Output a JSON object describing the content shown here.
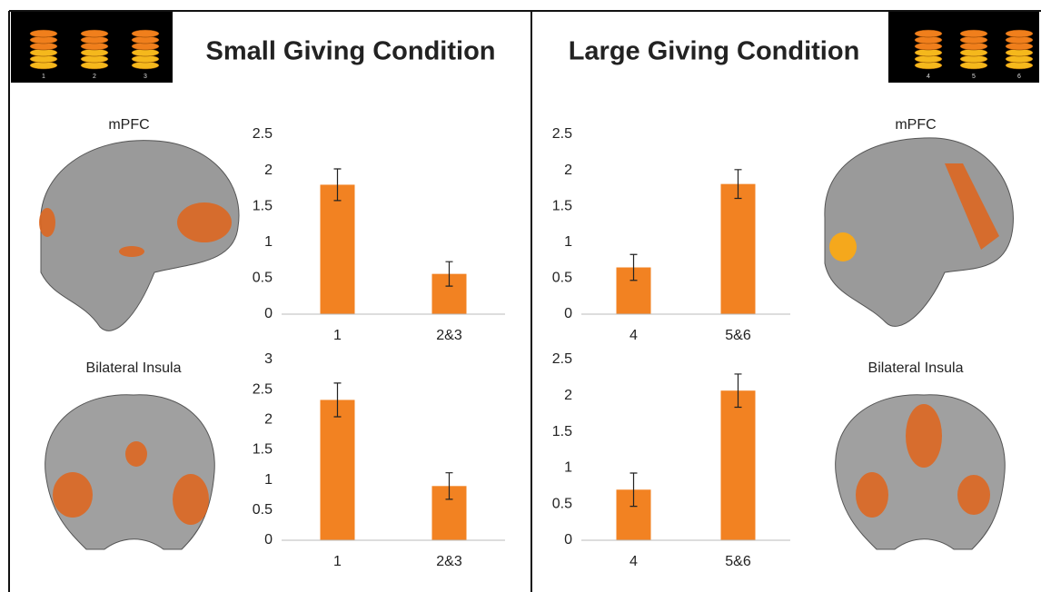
{
  "conditions": [
    {
      "title": "Small Giving Condition",
      "coin_labels": [
        "1",
        "2",
        "3"
      ],
      "regions": [
        "mPFC",
        "Bilateral Insula"
      ]
    },
    {
      "title": "Large Giving Condition",
      "coin_labels": [
        "4",
        "5",
        "6"
      ],
      "regions": [
        "mPFC",
        "Bilateral Insula"
      ]
    }
  ],
  "chart_data": [
    {
      "type": "bar",
      "categories": [
        "1",
        "2&3"
      ],
      "values": [
        1.8,
        0.56
      ],
      "errors": [
        0.22,
        0.17
      ],
      "color": "#f28222",
      "ylim": [
        0,
        2.5
      ],
      "yticks": [
        0,
        0.5,
        1,
        1.5,
        2,
        2.5
      ]
    },
    {
      "type": "bar",
      "categories": [
        "4",
        "5&6"
      ],
      "values": [
        0.65,
        1.81
      ],
      "errors": [
        0.18,
        0.2
      ],
      "color": "#f28222",
      "ylim": [
        0,
        2.5
      ],
      "yticks": [
        0,
        0.5,
        1,
        1.5,
        2,
        2.5
      ]
    },
    {
      "type": "bar",
      "categories": [
        "1",
        "2&3"
      ],
      "values": [
        2.33,
        0.9
      ],
      "errors": [
        0.28,
        0.22
      ],
      "color": "#f28222",
      "ylim": [
        0,
        3
      ],
      "yticks": [
        0,
        0.5,
        1,
        1.5,
        2,
        2.5,
        3
      ]
    },
    {
      "type": "bar",
      "categories": [
        "4",
        "5&6"
      ],
      "values": [
        0.7,
        2.07
      ],
      "errors": [
        0.23,
        0.23
      ],
      "color": "#f28222",
      "ylim": [
        0,
        2.5
      ],
      "yticks": [
        0,
        0.5,
        1,
        1.5,
        2,
        2.5
      ]
    }
  ]
}
